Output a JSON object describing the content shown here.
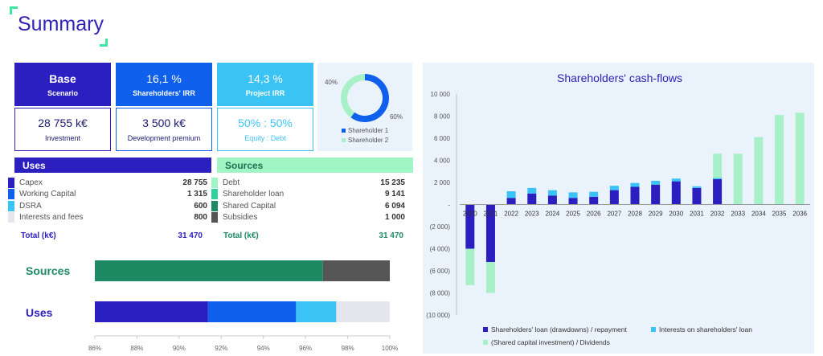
{
  "page": {
    "title": "Summary"
  },
  "kpis": {
    "base": {
      "value": "Base",
      "label": "Scenario",
      "color": "#2b1fbf"
    },
    "shareholders_irr": {
      "value": "16,1 %",
      "label": "Shareholders' IRR",
      "color": "#1060ee"
    },
    "project_irr": {
      "value": "14,3 %",
      "label": "Project IRR",
      "color": "#3cc3f5"
    },
    "investment": {
      "value": "28 755 k€",
      "label": "Investment",
      "color": "#2b1fbf"
    },
    "development_premium": {
      "value": "3 500 k€",
      "label": "Development premium",
      "color": "#1060ee"
    },
    "equity_debt": {
      "value": "50% : 50%",
      "label": "Equity : Debt",
      "color": "#3cc3f5"
    }
  },
  "donut": {
    "slices": [
      {
        "name": "Shareholder 1",
        "value": 60,
        "label": "60%",
        "color": "#1060ee"
      },
      {
        "name": "Shareholder 2",
        "value": 40,
        "label": "40%",
        "color": "#a8f0c8"
      }
    ]
  },
  "uses": {
    "title": "Uses",
    "rows": [
      {
        "label": "Capex",
        "value": "28 755",
        "color": "#2b1fbf"
      },
      {
        "label": "Working Capital",
        "value": "1 315",
        "color": "#1060ee"
      },
      {
        "label": "DSRA",
        "value": "600",
        "color": "#3cc3f5"
      },
      {
        "label": "Interests and fees",
        "value": "800",
        "color": "#e6e6ef"
      }
    ],
    "total_label": "Total (k€)",
    "total_value": "31 470"
  },
  "sources": {
    "title": "Sources",
    "rows": [
      {
        "label": "Debt",
        "value": "15 235",
        "color": "#a0f5c4"
      },
      {
        "label": "Shareholder loan",
        "value": "9 141",
        "color": "#2fd29c"
      },
      {
        "label": "Shared Capital",
        "value": "6 094",
        "color": "#1e8a64"
      },
      {
        "label": "Subsidies",
        "value": "1 000",
        "color": "#555555"
      }
    ],
    "total_label": "Total (k€)",
    "total_value": "31 470"
  },
  "chart_data": [
    {
      "type": "bar",
      "orientation": "horizontal-stacked-percent",
      "categories": [
        "Sources",
        "Uses"
      ],
      "series": [
        {
          "name": "Debt",
          "category": "Sources",
          "value": 15235,
          "color": "#a0f5c4"
        },
        {
          "name": "Shareholder loan",
          "category": "Sources",
          "value": 9141,
          "color": "#2fd29c"
        },
        {
          "name": "Shared Capital",
          "category": "Sources",
          "value": 6094,
          "color": "#1e8a64"
        },
        {
          "name": "Subsidies",
          "category": "Sources",
          "value": 1000,
          "color": "#555555"
        },
        {
          "name": "Capex",
          "category": "Uses",
          "value": 28755,
          "color": "#2b1fbf"
        },
        {
          "name": "Working Capital",
          "category": "Uses",
          "value": 1315,
          "color": "#1060ee"
        },
        {
          "name": "DSRA",
          "category": "Uses",
          "value": 600,
          "color": "#3cc3f5"
        },
        {
          "name": "Interests and fees",
          "category": "Uses",
          "value": 800,
          "color": "#e6e6ef"
        }
      ],
      "xlim": [
        86,
        100
      ],
      "xticks": [
        "86%",
        "88%",
        "90%",
        "92%",
        "94%",
        "96%",
        "98%",
        "100%"
      ]
    },
    {
      "type": "bar",
      "title": "Shareholders' cash-flows",
      "x": [
        "2020",
        "2021",
        "2022",
        "2023",
        "2024",
        "2025",
        "2026",
        "2027",
        "2028",
        "2029",
        "2030",
        "2031",
        "2032",
        "2033",
        "2034",
        "2035",
        "2036"
      ],
      "ylim": [
        -10000,
        10000
      ],
      "yticks": [
        "10 000",
        "8 000",
        "6 000",
        "4 000",
        "2 000",
        "-",
        "(2 000)",
        "(4 000)",
        "(6 000)",
        "(8 000)",
        "(10 000)"
      ],
      "legend_position": "bottom",
      "series": [
        {
          "name": "Shareholders' loan (drawdowns) / repayment",
          "color": "#2b1fbf",
          "values": [
            -4000,
            -5200,
            600,
            1000,
            800,
            600,
            700,
            1300,
            1600,
            1800,
            2100,
            1500,
            2300,
            0,
            0,
            0,
            0
          ]
        },
        {
          "name": "Interests on shareholders' loan",
          "color": "#3cc3f5",
          "values": [
            0,
            0,
            600,
            500,
            500,
            500,
            450,
            400,
            350,
            350,
            250,
            150,
            100,
            0,
            0,
            0,
            0
          ]
        },
        {
          "name": "(Shared capital investment) / Dividends",
          "color": "#a8f0c8",
          "values": [
            -3300,
            -2800,
            0,
            0,
            0,
            0,
            0,
            0,
            0,
            0,
            0,
            0,
            2200,
            4600,
            6100,
            8100,
            8300
          ]
        }
      ]
    }
  ]
}
